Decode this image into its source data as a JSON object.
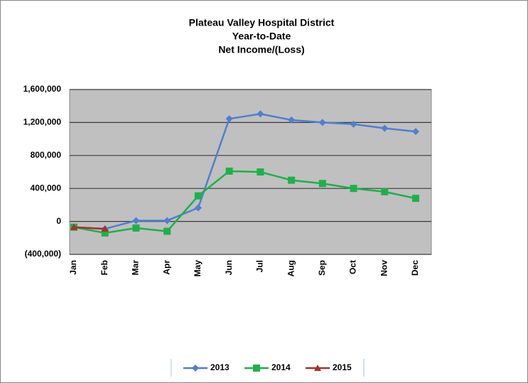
{
  "chart_data": {
    "type": "line",
    "title": [
      "Plateau Valley Hospital District",
      "Year-to-Date",
      "Net Income/(Loss)"
    ],
    "categories": [
      "Jan",
      "Feb",
      "Mar",
      "Apr",
      "May",
      "Jun",
      "Jul",
      "Aug",
      "Sep",
      "Oct",
      "Nov",
      "Dec"
    ],
    "series": [
      {
        "name": "2013",
        "color": "#4f7fcf",
        "marker": "diamond",
        "values": [
          -70000,
          -90000,
          10000,
          10000,
          165000,
          1245000,
          1305000,
          1230000,
          1200000,
          1180000,
          1130000,
          1090000
        ]
      },
      {
        "name": "2014",
        "color": "#1fb04a",
        "marker": "square",
        "values": [
          -70000,
          -140000,
          -80000,
          -120000,
          310000,
          610000,
          600000,
          500000,
          460000,
          400000,
          360000,
          280000
        ]
      },
      {
        "name": "2015",
        "color": "#a8302c",
        "marker": "triangle",
        "values": [
          -70000,
          -90000,
          null,
          null,
          null,
          null,
          null,
          null,
          null,
          null,
          null,
          null
        ]
      }
    ],
    "ylim": [
      -400000,
      1600000
    ],
    "yticks": [
      {
        "value": -400000,
        "label": "(400,000)"
      },
      0,
      {
        "value": 400000,
        "label": "400,000"
      },
      {
        "value": 800000,
        "label": "800,000"
      },
      {
        "value": 1200000,
        "label": "1,200,000"
      },
      {
        "value": 1600000,
        "label": "1,600,000"
      }
    ],
    "grid": true,
    "legend": "bottom"
  }
}
